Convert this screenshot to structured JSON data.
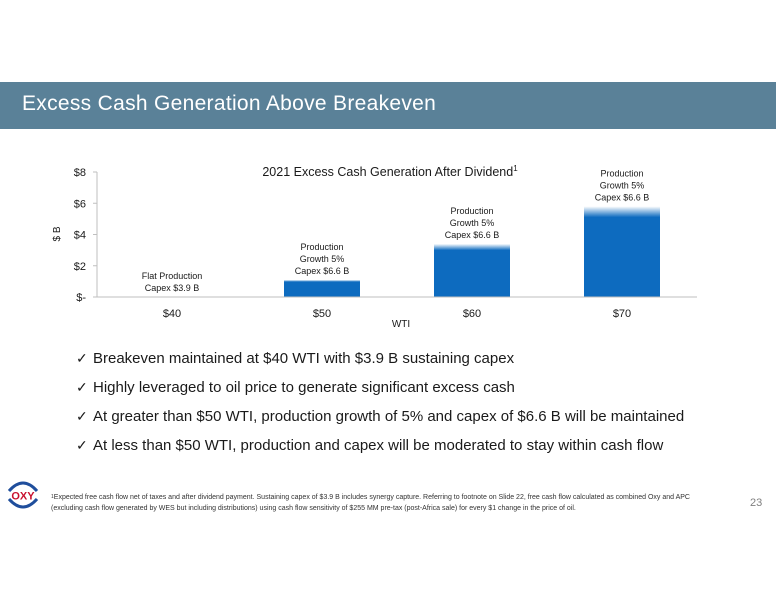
{
  "header": {
    "title": "Excess Cash Generation Above Breakeven"
  },
  "chart_data": {
    "type": "bar",
    "title": "2021 Excess Cash Generation After Dividend",
    "title_superscript": "1",
    "xlabel": "WTI",
    "ylabel": "$ B",
    "categories": [
      "$40",
      "$50",
      "$60",
      "$70"
    ],
    "values": [
      0,
      1.1,
      3.4,
      5.8
    ],
    "ylim": [
      0,
      8
    ],
    "yticks": [
      0,
      2,
      4,
      6,
      8
    ],
    "ytick_labels": [
      "$-",
      "$2",
      "$4",
      "$6",
      "$8"
    ],
    "bar_labels": [
      [
        "Flat Production",
        "Capex $3.9 B"
      ],
      [
        "Production",
        "Growth 5%",
        "Capex $6.6 B"
      ],
      [
        "Production",
        "Growth 5%",
        "Capex $6.6 B"
      ],
      [
        "Production",
        "Growth 5%",
        "Capex $6.6 B"
      ]
    ],
    "bar_color": "#0d6bbf",
    "grid": false
  },
  "bullets": [
    {
      "check": "✓",
      "text": "Breakeven maintained at $40 WTI with $3.9 B sustaining capex"
    },
    {
      "check": "✓",
      "text": "Highly leveraged to oil price to generate significant excess cash"
    },
    {
      "check": "✓",
      "text": "At greater than $50 WTI, production growth of 5% and capex of $6.6 B will be maintained"
    },
    {
      "check": "✓",
      "text": "At less than $50 WTI, production and capex will be moderated to stay within cash flow"
    }
  ],
  "logo": {
    "text": "OXY",
    "color": "#c8102e"
  },
  "footnote": {
    "marker": "1",
    "text": "Expected free cash flow net of taxes and after dividend payment. Sustaining capex of $3.9 B includes synergy capture. Referring to footnote on Slide 22, free cash flow calculated as combined Oxy and APC (excluding cash flow generated by WES but including distributions) using cash flow sensitivity of $255 MM pre-tax (post-Africa sale) for every $1 change in the price of oil."
  },
  "page_number": "23"
}
